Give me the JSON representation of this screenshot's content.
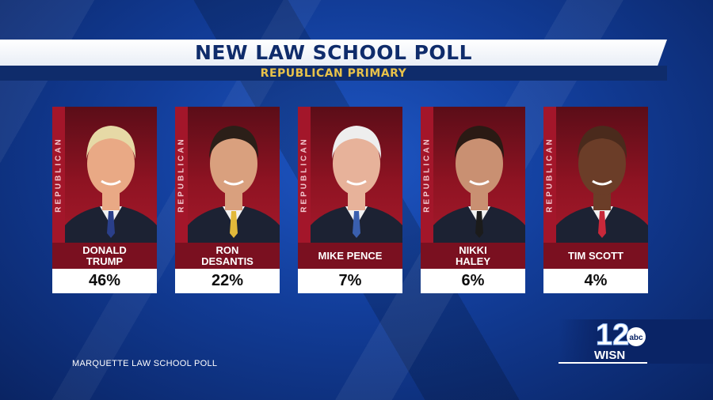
{
  "title": "NEW LAW SCHOOL POLL",
  "subtitle": "REPUBLICAN PRIMARY",
  "party_label": "REPUBLICAN",
  "source": "MARQUETTE LAW SCHOOL POLL",
  "station": {
    "number": "12",
    "network": "abc",
    "call_sign": "WISN"
  },
  "colors": {
    "navy": "#0f2c6b",
    "gold": "#e8c24a",
    "red": "#a3162a",
    "maroon": "#7a1020"
  },
  "candidates": [
    {
      "name": "DONALD\nTRUMP",
      "percent": "46%",
      "value": 46,
      "hair": "#e6d9a6",
      "skin": "#e9a985",
      "tie": "#2a3f8a"
    },
    {
      "name": "RON\nDESANTIS",
      "percent": "22%",
      "value": 22,
      "hair": "#2b1f18",
      "skin": "#d9a07e",
      "tie": "#e2b93a"
    },
    {
      "name": "MIKE PENCE",
      "percent": "7%",
      "value": 7,
      "hair": "#eeeeee",
      "skin": "#e7b29a",
      "tie": "#3a5fae"
    },
    {
      "name": "NIKKI\nHALEY",
      "percent": "6%",
      "value": 6,
      "hair": "#2a1a14",
      "skin": "#c99072",
      "tie": "#1b1b1b"
    },
    {
      "name": "TIM SCOTT",
      "percent": "4%",
      "value": 4,
      "hair": "#4a2a1c",
      "skin": "#6b3d28",
      "tie": "#c8283a"
    }
  ]
}
